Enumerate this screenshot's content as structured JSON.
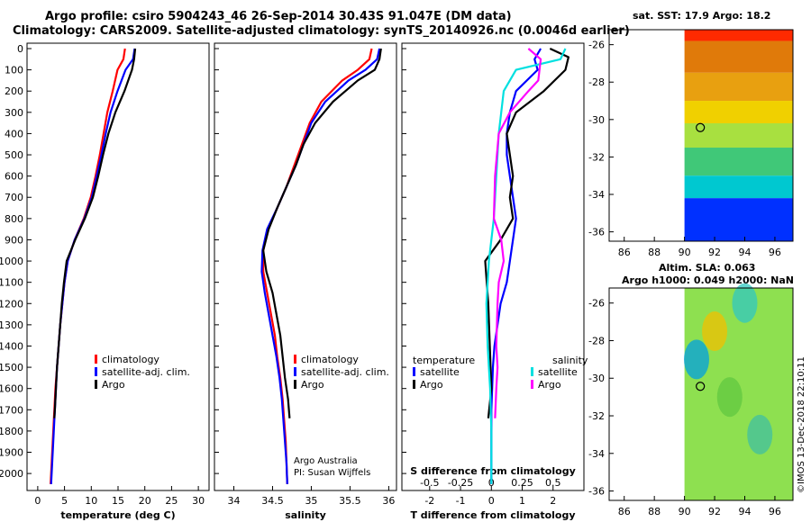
{
  "header": {
    "title_line1": "Argo profile: csiro 5904243_46 26-Sep-2014 30.43S 91.047E (DM data)",
    "title_line2": "Climatology: CARS2009. Satellite-adjusted climatology: synTS_20140926.nc (0.0046d earlier)"
  },
  "maps": {
    "sst_label": "sat. SST: 17.9 Argo: 18.2",
    "sla_label1": "Altim. SLA: 0.063",
    "sla_label2": "Argo h1000: 0.049 h2000: NaN"
  },
  "annotations": {
    "argo_australia": "Argo Australia",
    "pi": "PI: Susan Wijffels",
    "credit": "©IMOS 13-Dec-2018 22:10:11"
  },
  "colors": {
    "climatology": "#ff0000",
    "satellite": "#0000ff",
    "argo": "#000000",
    "satellite_salinity": "#00e0e0",
    "argo_salinity": "#ff00ff"
  },
  "chart_data": [
    {
      "type": "line",
      "xlabel": "temperature (deg C)",
      "ylabel": "",
      "xlim": [
        -2,
        32
      ],
      "ylim": [
        2080,
        0
      ],
      "xticks": [
        0,
        5,
        10,
        15,
        20,
        25,
        30
      ],
      "yticks": [
        0,
        100,
        200,
        300,
        400,
        500,
        600,
        700,
        800,
        900,
        1000,
        1100,
        1200,
        1300,
        1400,
        1500,
        1600,
        1700,
        1800,
        1900,
        2000
      ],
      "legend": [
        "climatology",
        "satellite-adj. clim.",
        "Argo"
      ],
      "series": [
        {
          "name": "climatology",
          "values": [
            [
              16.3,
              0
            ],
            [
              16.0,
              50
            ],
            [
              14.9,
              100
            ],
            [
              14.0,
              200
            ],
            [
              13.0,
              300
            ],
            [
              12.3,
              400
            ],
            [
              11.6,
              500
            ],
            [
              10.8,
              600
            ],
            [
              9.9,
              700
            ],
            [
              8.6,
              800
            ],
            [
              6.9,
              900
            ],
            [
              5.6,
              1000
            ],
            [
              5.0,
              1100
            ],
            [
              4.6,
              1200
            ],
            [
              4.2,
              1300
            ],
            [
              3.9,
              1400
            ],
            [
              3.6,
              1500
            ],
            [
              3.3,
              1600
            ],
            [
              3.1,
              1700
            ],
            [
              2.9,
              1800
            ],
            [
              2.7,
              1900
            ],
            [
              2.5,
              2000
            ],
            [
              2.4,
              2050
            ]
          ]
        },
        {
          "name": "satellite-adj. clim.",
          "values": [
            [
              18.1,
              0
            ],
            [
              17.8,
              50
            ],
            [
              16.4,
              100
            ],
            [
              14.9,
              200
            ],
            [
              13.6,
              300
            ],
            [
              12.7,
              400
            ],
            [
              11.9,
              500
            ],
            [
              11.0,
              600
            ],
            [
              10.1,
              700
            ],
            [
              8.7,
              800
            ],
            [
              6.9,
              900
            ],
            [
              5.6,
              1000
            ],
            [
              5.0,
              1100
            ],
            [
              4.6,
              1200
            ],
            [
              4.2,
              1300
            ],
            [
              3.9,
              1400
            ],
            [
              3.6,
              1500
            ],
            [
              3.4,
              1600
            ],
            [
              3.2,
              1700
            ],
            [
              3.0,
              1800
            ],
            [
              2.8,
              1900
            ],
            [
              2.6,
              2000
            ],
            [
              2.5,
              2050
            ]
          ]
        },
        {
          "name": "Argo",
          "values": [
            [
              18.2,
              0
            ],
            [
              18.0,
              50
            ],
            [
              17.6,
              100
            ],
            [
              16.2,
              200
            ],
            [
              14.5,
              300
            ],
            [
              13.2,
              400
            ],
            [
              12.2,
              500
            ],
            [
              11.3,
              600
            ],
            [
              10.3,
              700
            ],
            [
              8.8,
              800
            ],
            [
              7.0,
              900
            ],
            [
              5.4,
              1000
            ],
            [
              4.9,
              1100
            ],
            [
              4.5,
              1200
            ],
            [
              4.2,
              1300
            ],
            [
              3.9,
              1400
            ],
            [
              3.6,
              1500
            ],
            [
              3.4,
              1600
            ],
            [
              3.2,
              1700
            ],
            [
              3.1,
              1740
            ]
          ]
        }
      ]
    },
    {
      "type": "line",
      "xlabel": "salinity",
      "ylabel": "",
      "xlim": [
        33.75,
        36.1
      ],
      "ylim": [
        2080,
        0
      ],
      "xticks": [
        34,
        34.5,
        35,
        35.5,
        36
      ],
      "legend": [
        "climatology",
        "satellite-adj. clim.",
        "Argo"
      ],
      "series": [
        {
          "name": "climatology",
          "values": [
            [
              35.78,
              0
            ],
            [
              35.75,
              50
            ],
            [
              35.6,
              100
            ],
            [
              35.4,
              150
            ],
            [
              35.13,
              250
            ],
            [
              34.98,
              350
            ],
            [
              34.88,
              450
            ],
            [
              34.78,
              550
            ],
            [
              34.68,
              650
            ],
            [
              34.56,
              750
            ],
            [
              34.44,
              850
            ],
            [
              34.38,
              950
            ],
            [
              34.38,
              1050
            ],
            [
              34.43,
              1150
            ],
            [
              34.48,
              1250
            ],
            [
              34.53,
              1350
            ],
            [
              34.56,
              1450
            ],
            [
              34.6,
              1550
            ],
            [
              34.63,
              1650
            ],
            [
              34.65,
              1750
            ],
            [
              34.67,
              1850
            ],
            [
              34.68,
              1950
            ],
            [
              34.69,
              2050
            ]
          ]
        },
        {
          "name": "satellite-adj. clim.",
          "values": [
            [
              35.88,
              0
            ],
            [
              35.85,
              50
            ],
            [
              35.7,
              100
            ],
            [
              35.48,
              150
            ],
            [
              35.18,
              250
            ],
            [
              35.0,
              350
            ],
            [
              34.9,
              450
            ],
            [
              34.8,
              550
            ],
            [
              34.68,
              650
            ],
            [
              34.56,
              750
            ],
            [
              34.43,
              850
            ],
            [
              34.37,
              950
            ],
            [
              34.36,
              1050
            ],
            [
              34.4,
              1150
            ],
            [
              34.45,
              1250
            ],
            [
              34.5,
              1350
            ],
            [
              34.55,
              1450
            ],
            [
              34.59,
              1550
            ],
            [
              34.62,
              1650
            ],
            [
              34.64,
              1750
            ],
            [
              34.66,
              1850
            ],
            [
              34.68,
              1950
            ],
            [
              34.69,
              2050
            ]
          ]
        },
        {
          "name": "Argo",
          "values": [
            [
              35.9,
              0
            ],
            [
              35.88,
              50
            ],
            [
              35.82,
              100
            ],
            [
              35.6,
              150
            ],
            [
              35.28,
              250
            ],
            [
              35.05,
              350
            ],
            [
              34.9,
              450
            ],
            [
              34.8,
              550
            ],
            [
              34.68,
              650
            ],
            [
              34.56,
              750
            ],
            [
              34.45,
              850
            ],
            [
              34.38,
              950
            ],
            [
              34.42,
              1050
            ],
            [
              34.5,
              1150
            ],
            [
              34.55,
              1250
            ],
            [
              34.6,
              1350
            ],
            [
              34.63,
              1450
            ],
            [
              34.66,
              1550
            ],
            [
              34.7,
              1650
            ],
            [
              34.72,
              1740
            ]
          ]
        }
      ]
    },
    {
      "type": "line",
      "xlabel": "T difference from climatology",
      "top_label": "S difference from climatology",
      "ylabel": "",
      "xlim": [
        -2.9,
        3.0
      ],
      "ylim": [
        2080,
        0
      ],
      "xticks": [
        -2,
        -1,
        0,
        1,
        2
      ],
      "sticks": [
        -0.5,
        -0.25,
        0,
        0.25,
        0.5
      ],
      "legend_left_title": "temperature",
      "legend_right_title": "salinity",
      "legend": [
        "satellite",
        "Argo",
        "satellite",
        "Argo"
      ],
      "series": [
        {
          "name": "satellite",
          "values": [
            [
              1.6,
              0
            ],
            [
              1.4,
              50
            ],
            [
              1.5,
              100
            ],
            [
              0.8,
              200
            ],
            [
              0.6,
              300
            ],
            [
              0.5,
              400
            ],
            [
              0.5,
              500
            ],
            [
              0.6,
              600
            ],
            [
              0.7,
              700
            ],
            [
              0.8,
              800
            ],
            [
              0.7,
              900
            ],
            [
              0.6,
              1000
            ],
            [
              0.5,
              1100
            ],
            [
              0.3,
              1200
            ],
            [
              0.2,
              1300
            ],
            [
              0.1,
              1400
            ],
            [
              0.05,
              1500
            ],
            [
              0.0,
              1700
            ],
            [
              0.0,
              2050
            ]
          ]
        },
        {
          "name": "Argo",
          "values": [
            [
              1.9,
              0
            ],
            [
              2.5,
              40
            ],
            [
              2.4,
              100
            ],
            [
              1.7,
              200
            ],
            [
              0.8,
              300
            ],
            [
              0.5,
              400
            ],
            [
              0.6,
              500
            ],
            [
              0.7,
              600
            ],
            [
              0.6,
              700
            ],
            [
              0.7,
              800
            ],
            [
              0.3,
              900
            ],
            [
              -0.2,
              1000
            ],
            [
              -0.15,
              1100
            ],
            [
              -0.1,
              1200
            ],
            [
              -0.05,
              1400
            ],
            [
              0.0,
              1600
            ],
            [
              -0.1,
              1740
            ]
          ]
        },
        {
          "name": "satellite",
          "values": [
            [
              0.6,
              0
            ],
            [
              0.56,
              50
            ],
            [
              0.2,
              100
            ],
            [
              0.1,
              200
            ],
            [
              0.06,
              400
            ],
            [
              0.04,
              600
            ],
            [
              0.02,
              800
            ],
            [
              -0.02,
              1000
            ],
            [
              -0.04,
              1200
            ],
            [
              -0.03,
              1400
            ],
            [
              -0.01,
              1600
            ],
            [
              0.0,
              1800
            ],
            [
              0.0,
              2050
            ]
          ]
        },
        {
          "name": "Argo",
          "values": [
            [
              0.3,
              0
            ],
            [
              0.4,
              50
            ],
            [
              0.38,
              150
            ],
            [
              0.3,
              200
            ],
            [
              0.15,
              300
            ],
            [
              0.06,
              400
            ],
            [
              0.03,
              600
            ],
            [
              0.02,
              800
            ],
            [
              0.08,
              900
            ],
            [
              0.1,
              1000
            ],
            [
              0.06,
              1100
            ],
            [
              0.05,
              1200
            ],
            [
              0.04,
              1400
            ],
            [
              0.05,
              1500
            ],
            [
              0.04,
              1600
            ],
            [
              0.03,
              1740
            ]
          ]
        }
      ]
    },
    {
      "type": "heatmap",
      "title": "sat. SST: 17.9 Argo: 18.2",
      "xlim": [
        85,
        97.2
      ],
      "ylim": [
        -36.5,
        -25.2
      ],
      "xticks": [
        86,
        88,
        90,
        92,
        94,
        96
      ],
      "yticks": [
        -26,
        -28,
        -30,
        -32,
        -34,
        -36
      ],
      "data_xlim": [
        90,
        97.2
      ],
      "rows_top_to_bottom": [
        {
          "lat_from": -25.2,
          "lat_to": -25.8,
          "color": "#ff2a00"
        },
        {
          "lat_from": -25.8,
          "lat_to": -27.5,
          "color": "#e07a0a"
        },
        {
          "lat_from": -27.5,
          "lat_to": -29.0,
          "color": "#e8a010"
        },
        {
          "lat_from": -29.0,
          "lat_to": -30.2,
          "color": "#f0d000"
        },
        {
          "lat_from": -30.2,
          "lat_to": -31.5,
          "color": "#a8e040"
        },
        {
          "lat_from": -31.5,
          "lat_to": -33.0,
          "color": "#40c878"
        },
        {
          "lat_from": -33.0,
          "lat_to": -34.2,
          "color": "#00c8d0"
        },
        {
          "lat_from": -34.2,
          "lat_to": -36.5,
          "color": "#0030ff"
        }
      ],
      "argo_marker": [
        91.05,
        -30.43
      ]
    },
    {
      "type": "heatmap",
      "title": "Altim. SLA: 0.063",
      "xlim": [
        85,
        97.2
      ],
      "ylim": [
        -36.5,
        -25.2
      ],
      "xticks": [
        86,
        88,
        90,
        92,
        94,
        96
      ],
      "yticks": [
        -26,
        -28,
        -30,
        -32,
        -34,
        -36
      ],
      "data_xlim": [
        90,
        97.2
      ],
      "background_color": "#8ee050",
      "argo_marker": [
        91.05,
        -30.43
      ]
    }
  ]
}
